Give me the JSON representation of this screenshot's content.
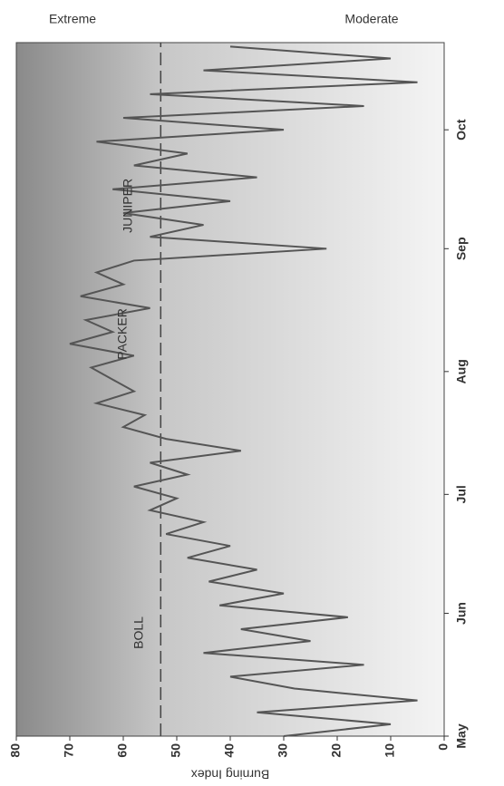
{
  "chart_data": {
    "type": "line",
    "y_label": "Burning Index",
    "x": [
      0,
      3,
      6,
      9,
      12,
      15,
      18,
      21,
      24,
      27,
      30,
      33,
      36,
      39,
      42,
      45,
      48,
      51,
      54,
      57,
      60,
      63,
      66,
      69,
      72,
      75,
      78,
      81,
      84,
      87,
      90,
      93,
      96,
      99,
      102,
      105,
      108,
      111,
      114,
      117,
      120,
      123,
      126,
      129,
      132,
      135,
      138,
      141,
      144,
      147,
      150,
      153,
      156,
      159,
      162,
      165,
      168,
      171,
      174
    ],
    "values": [
      30,
      10,
      35,
      5,
      28,
      40,
      15,
      45,
      25,
      38,
      18,
      42,
      30,
      44,
      35,
      48,
      40,
      52,
      45,
      55,
      50,
      58,
      48,
      55,
      38,
      52,
      60,
      56,
      65,
      58,
      62,
      66,
      58,
      70,
      62,
      67,
      55,
      68,
      60,
      65,
      58,
      22,
      55,
      45,
      60,
      40,
      62,
      35,
      58,
      48,
      65,
      30,
      60,
      15,
      55,
      5,
      45,
      10,
      40
    ],
    "color": "#555555",
    "xlim": [
      0,
      175
    ],
    "xticks": [
      {
        "value": 0,
        "label": "May"
      },
      {
        "value": 31,
        "label": "Jun"
      },
      {
        "value": 61,
        "label": "Jul"
      },
      {
        "value": 92,
        "label": "Aug"
      },
      {
        "value": 123,
        "label": "Sep"
      },
      {
        "value": 153,
        "label": "Oct"
      }
    ],
    "ylim": [
      0,
      80
    ],
    "yticks": [
      0,
      10,
      20,
      30,
      40,
      50,
      60,
      70,
      80
    ],
    "reference_line": 53,
    "annotations": [
      {
        "text": "BOLL",
        "x": 22,
        "y": 57
      },
      {
        "text": "PACKER",
        "x": 95,
        "y": 60
      },
      {
        "text": "JUNIPER",
        "x": 127,
        "y": 59
      }
    ],
    "scale_labels": [
      "Extreme",
      "Moderate"
    ]
  }
}
